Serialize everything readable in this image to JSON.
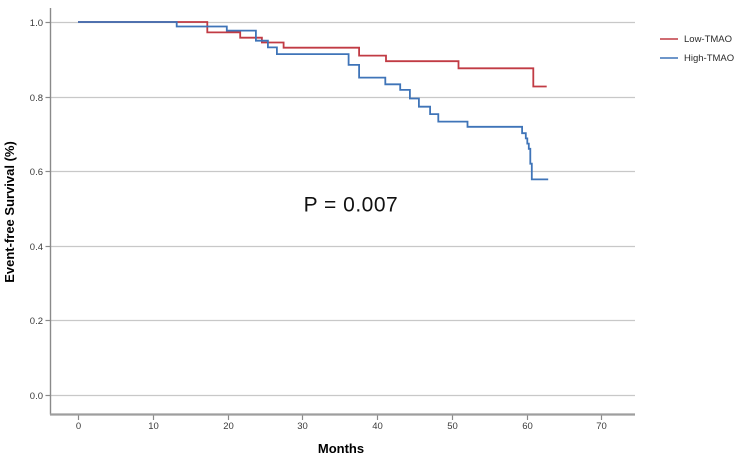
{
  "chart_data": {
    "type": "line",
    "subtype": "kaplan-meier-step",
    "title": "",
    "xlabel": "Months",
    "ylabel": "Event-free Survival (%)",
    "xlim": [
      0,
      70
    ],
    "ylim": [
      0.0,
      1.0
    ],
    "x_ticks": [
      0,
      10,
      20,
      30,
      40,
      50,
      60,
      70
    ],
    "x_tick_labels": [
      "0",
      "10",
      "20",
      "30",
      "40",
      "50",
      "60",
      "70"
    ],
    "y_ticks": [
      0.0,
      0.2,
      0.4,
      0.6,
      0.8,
      1.0
    ],
    "y_tick_labels": [
      "0.0",
      "0.2",
      "0.4",
      "0.6",
      "0.8",
      "1.0"
    ],
    "grid": true,
    "annotation": {
      "text": "P = 0.007",
      "x": 36.5,
      "y": 0.492
    },
    "legend": {
      "position": "right",
      "entries": [
        {
          "label": "Low-TMAO",
          "color": "#c13b44"
        },
        {
          "label": "High-TMAO",
          "color": "#3f74b8"
        }
      ]
    },
    "colors": {
      "gridline": "#c8c8c8",
      "y_axis": "#8a8a8a",
      "x_axis": "#9e9e9e",
      "tick": "#8a8a8a"
    },
    "series": [
      {
        "name": "Low-TMAO",
        "color": "#c13b44",
        "end_month": 62.7,
        "steps": [
          [
            0,
            1.0
          ],
          [
            17.3,
            0.972
          ],
          [
            21.7,
            0.958
          ],
          [
            24.6,
            0.945
          ],
          [
            27.5,
            0.931
          ],
          [
            37.6,
            0.91
          ],
          [
            41.2,
            0.895
          ],
          [
            50.9,
            0.876
          ],
          [
            60.9,
            0.827
          ]
        ]
      },
      {
        "name": "High-TMAO",
        "color": "#3f74b8",
        "end_month": 62.9,
        "steps": [
          [
            0,
            1.0
          ],
          [
            13.2,
            0.988
          ],
          [
            19.9,
            0.977
          ],
          [
            23.8,
            0.95
          ],
          [
            25.4,
            0.932
          ],
          [
            26.6,
            0.914
          ],
          [
            36.2,
            0.885
          ],
          [
            37.6,
            0.851
          ],
          [
            41.1,
            0.833
          ],
          [
            43.1,
            0.818
          ],
          [
            44.4,
            0.795
          ],
          [
            45.6,
            0.773
          ],
          [
            47.1,
            0.753
          ],
          [
            48.2,
            0.733
          ],
          [
            52.1,
            0.719
          ],
          [
            59.4,
            0.702
          ],
          [
            59.9,
            0.688
          ],
          [
            60.1,
            0.674
          ],
          [
            60.3,
            0.66
          ],
          [
            60.5,
            0.62
          ],
          [
            60.7,
            0.578
          ]
        ]
      }
    ]
  }
}
